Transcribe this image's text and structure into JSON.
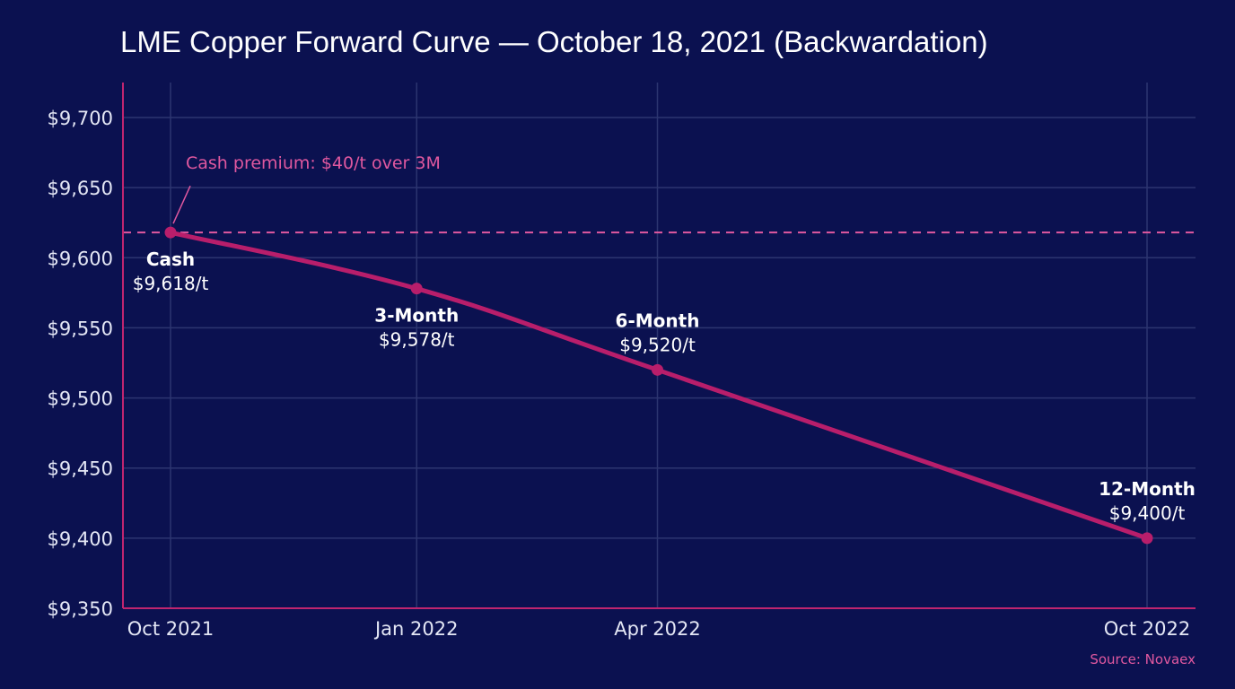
{
  "chart_data": {
    "type": "line",
    "title": "LME Copper Forward Curve — October 18, 2021 (Backwardation)",
    "xlabel": "",
    "ylabel": "",
    "ylim": [
      9350,
      9700
    ],
    "yticks": [
      9350,
      9400,
      9450,
      9500,
      9550,
      9600,
      9650,
      9700
    ],
    "ytick_labels": [
      "$9,350",
      "$9,400",
      "$9,450",
      "$9,500",
      "$9,550",
      "$9,600",
      "$9,650",
      "$9,700"
    ],
    "xticks": [
      "2021-10-18",
      "2022-01-18",
      "2022-04-18",
      "2022-10-18"
    ],
    "xtick_labels": [
      "Oct 2021",
      "Jan 2022",
      "Apr 2022",
      "Oct 2022"
    ],
    "grid": true,
    "series": [
      {
        "color": "#b81e6b",
        "points": [
          {
            "x": "2021-10-18",
            "y": 9618,
            "name": "Cash",
            "label": "$9,618/t"
          },
          {
            "x": "2022-01-18",
            "y": 9578,
            "name": "3-Month",
            "label": "$9,578/t"
          },
          {
            "x": "2022-04-18",
            "y": 9520,
            "name": "6-Month",
            "label": "$9,520/t"
          },
          {
            "x": "2022-10-18",
            "y": 9400,
            "name": "12-Month",
            "label": "$9,400/t"
          }
        ]
      }
    ],
    "reference_line": {
      "y": 9618,
      "style": "dashed",
      "color": "#e0589f"
    },
    "annotation": {
      "text": "Cash premium: $40/t over 3M",
      "target_x": "2021-10-18",
      "target_y": 9618,
      "color": "#e0589f"
    },
    "source": "Source: Novaex",
    "colors": {
      "background": "#0b1150",
      "axis": "#c0256f",
      "grid": "#2c3570",
      "accent": "#e0589f",
      "line": "#b81e6b"
    }
  }
}
